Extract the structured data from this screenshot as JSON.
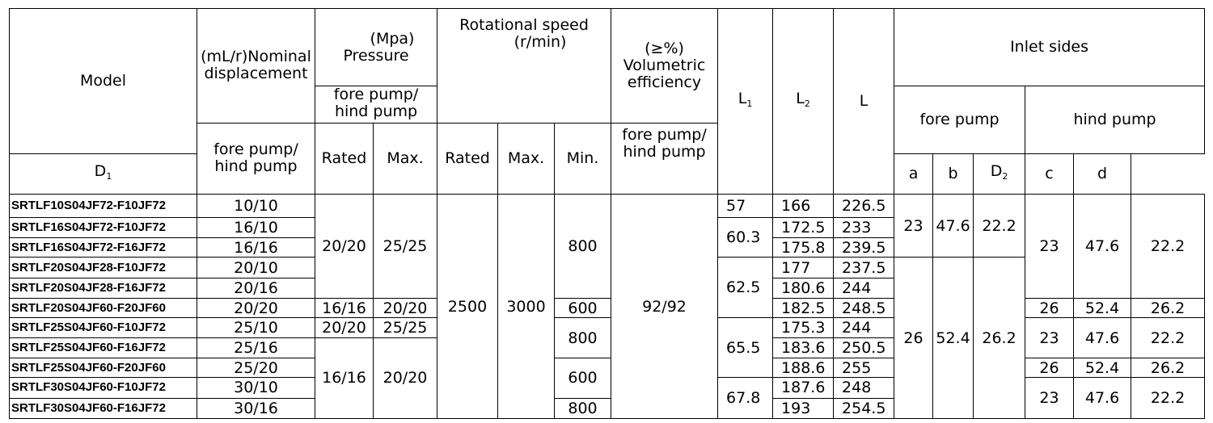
{
  "headers": {
    "model": "Model",
    "disp_l1": "(mL/r)Nominal",
    "disp_l2": "displacement",
    "fore_hind_l1": "fore pump/",
    "fore_hind_l2": "hind pump",
    "pressure_unit": "(Mpa)",
    "pressure_label": "Pressure",
    "pressure_sub_l1": "fore pump/",
    "pressure_sub_l2": "hind pump",
    "rated": "Rated",
    "max": "Max.",
    "speed_l1": "Rotational speed",
    "speed_l2": "(r/min)",
    "speed_rated": "Rated",
    "speed_max": "Max.",
    "speed_min": "Min.",
    "eff_unit": "(≥%)",
    "eff_l1": "Volumetric",
    "eff_l2": "efficiency",
    "eff_sub_l1": "fore pump/",
    "eff_sub_l2": "hind pump",
    "l1": "L",
    "l1_sub": "1",
    "l2": "L",
    "l2_sub": "2",
    "l": "L",
    "inlet": "Inlet sides",
    "fore_pump": "fore pump",
    "hind_pump": "hind pump",
    "d1": "D",
    "d1_sub": "1",
    "a": "a",
    "b": "b",
    "d2": "D",
    "d2_sub": "2",
    "c": "c",
    "d": "d"
  },
  "rows": [
    {
      "model": "SRTLF10S04JF72-F10JF72",
      "disp": "10/10",
      "L2": "166",
      "L": "226.5"
    },
    {
      "model": "SRTLF16S04JF72-F10JF72",
      "disp": "16/10",
      "L2": "172.5",
      "L": "233"
    },
    {
      "model": "SRTLF16S04JF72-F16JF72",
      "disp": "16/16",
      "L2": "175.8",
      "L": "239.5"
    },
    {
      "model": "SRTLF20S04JF28-F10JF72",
      "disp": "20/10",
      "L2": "177",
      "L": "237.5"
    },
    {
      "model": "SRTLF20S04JF28-F16JF72",
      "disp": "20/16",
      "L2": "180.6",
      "L": "244"
    },
    {
      "model": "SRTLF20S04JF60-F20JF60",
      "disp": "20/20",
      "L2": "182.5",
      "L": "248.5"
    },
    {
      "model": "SRTLF25S04JF60-F10JF72",
      "disp": "25/10",
      "L2": "175.3",
      "L": "244"
    },
    {
      "model": "SRTLF25S04JF60-F16JF72",
      "disp": "25/16",
      "L2": "183.6",
      "L": "250.5"
    },
    {
      "model": "SRTLF25S04JF60-F20JF60",
      "disp": "25/20",
      "L2": "188.6",
      "L": "255"
    },
    {
      "model": "SRTLF30S04JF60-F10JF72",
      "disp": "30/10",
      "L2": "187.6",
      "L": "248"
    },
    {
      "model": "SRTLF30S04JF60-F16JF72",
      "disp": "30/16",
      "L2": "193",
      "L": "254.5"
    }
  ],
  "merged": {
    "p_rated_a": "20/20",
    "p_max_a": "25/25",
    "p_rated_b": "16/16",
    "p_max_b": "20/20",
    "p_rated_c": "20/20",
    "p_max_c": "25/25",
    "p_rated_d": "16/16",
    "p_max_d": "20/20",
    "s_rated": "2500",
    "s_max": "3000",
    "s_min_a": "800",
    "s_min_b": "600",
    "s_min_c": "800",
    "s_min_d": "600",
    "s_min_e": "800",
    "eff": "92/92",
    "l1_a": "57",
    "l1_b": "60.3",
    "l1_c": "62.5",
    "l1_d": "65.5",
    "l1_e": "67.8",
    "fore_d1_a": "23",
    "fore_a_a": "47.6",
    "fore_b_a": "22.2",
    "fore_d1_b": "26",
    "fore_a_b": "52.4",
    "fore_b_b": "26.2",
    "h1_d2": "23",
    "h1_c": "47.6",
    "h1_d": "22.2",
    "h2_d2": "26",
    "h2_c": "52.4",
    "h2_d": "26.2",
    "h3_d2": "23",
    "h3_c": "47.6",
    "h3_d": "22.2",
    "h4_d2": "26",
    "h4_c": "52.4",
    "h4_d": "26.2",
    "h5_d2": "23",
    "h5_c": "47.6",
    "h5_d": "22.2"
  }
}
